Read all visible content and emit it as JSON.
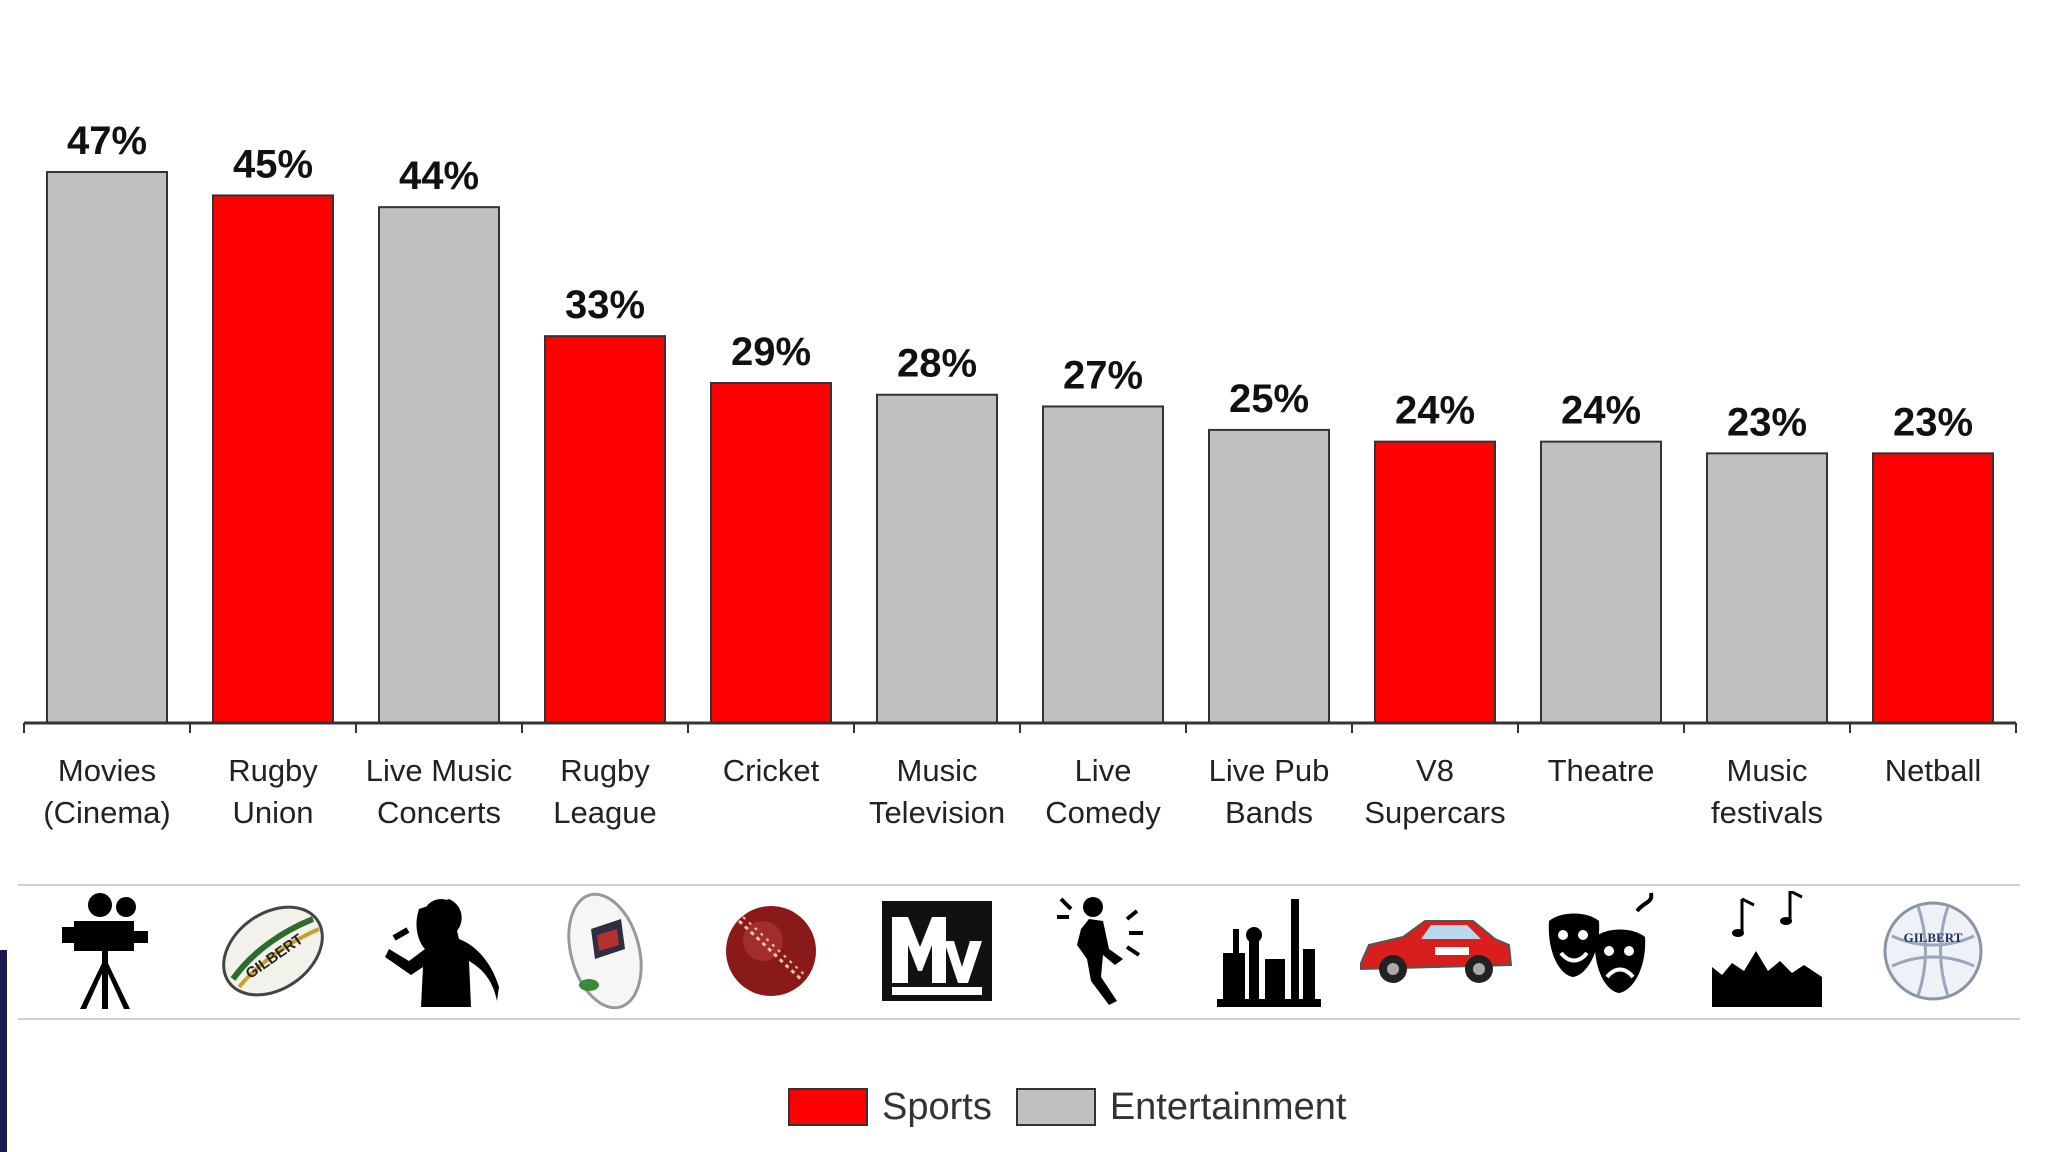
{
  "chart_data": {
    "type": "bar",
    "categories": [
      "Movies\n(Cinema)",
      "Rugby\nUnion",
      "Live Music\nConcerts",
      "Rugby\nLeague",
      "Cricket",
      "Music\nTelevision",
      "Live\nComedy",
      "Live Pub\nBands",
      "V8\nSupercars",
      "Theatre",
      "Music\nfestivals",
      "Netball"
    ],
    "values": [
      47,
      45,
      44,
      33,
      29,
      28,
      27,
      25,
      24,
      24,
      23,
      23
    ],
    "value_labels": [
      "47%",
      "45%",
      "44%",
      "33%",
      "29%",
      "28%",
      "27%",
      "25%",
      "24%",
      "24%",
      "23%",
      "23%"
    ],
    "groups": [
      "Entertainment",
      "Sports",
      "Entertainment",
      "Sports",
      "Sports",
      "Entertainment",
      "Entertainment",
      "Entertainment",
      "Sports",
      "Entertainment",
      "Entertainment",
      "Sports"
    ],
    "ylim": [
      0,
      50
    ],
    "grid": false,
    "legend": {
      "placement": "bottom-center",
      "items": [
        {
          "name": "Sports",
          "color": "#ff0000"
        },
        {
          "name": "Entertainment",
          "color": "#c0c0c0"
        }
      ]
    },
    "colors": {
      "Sports": "#ff0000",
      "Entertainment": "#c0c0c0",
      "bar_border": "#333333"
    },
    "icons": [
      "film-camera-icon",
      "rugby-union-ball-icon",
      "singer-silhouette-icon",
      "rugby-league-ball-icon",
      "cricket-ball-icon",
      "mtv-logo-icon",
      "comedian-icon",
      "pub-band-icon",
      "v8-supercar-icon",
      "theatre-masks-icon",
      "music-festival-icon",
      "netball-icon"
    ]
  },
  "legend": {
    "sports_label": "Sports",
    "entertainment_label": "Entertainment"
  }
}
